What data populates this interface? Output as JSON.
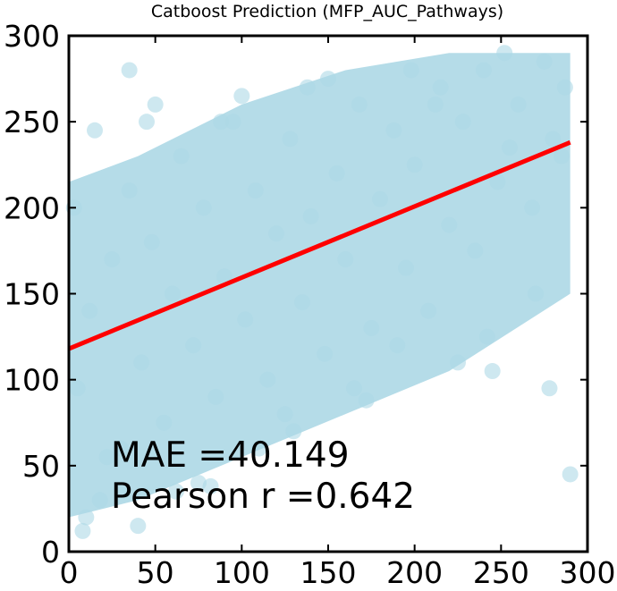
{
  "chart_data": {
    "type": "scatter",
    "title": "Catboost Prediction (MFP_AUC_Pathways)",
    "xlabel": "",
    "ylabel": "",
    "xlim": [
      0,
      300
    ],
    "ylim": [
      0,
      300
    ],
    "x_ticks": [
      "0",
      "50",
      "100",
      "150",
      "200",
      "250",
      "300"
    ],
    "y_ticks": [
      "0",
      "50",
      "100",
      "150",
      "200",
      "250",
      "300"
    ],
    "grid": false,
    "point_color": "#add8e6",
    "fit_line_color": "#ff0000",
    "fit_line": {
      "x": [
        0,
        290
      ],
      "y": [
        118,
        238
      ]
    },
    "annotations": {
      "mae": "MAE =40.149",
      "pearson": "Pearson r =0.642"
    },
    "series": [
      {
        "x": [
          5,
          12,
          18,
          25,
          30,
          35,
          42,
          48,
          55,
          60,
          65,
          72,
          78,
          85,
          90,
          95,
          102,
          108,
          115,
          120,
          128,
          135,
          140,
          148,
          155,
          160,
          168,
          175,
          180,
          188,
          195,
          200,
          208,
          215,
          220,
          228,
          235,
          240,
          248,
          255,
          260,
          268,
          275,
          280,
          287,
          10,
          22,
          40,
          62,
          88,
          110,
          138,
          165,
          190,
          212,
          242,
          270,
          285,
          3,
          15,
          50,
          75,
          100,
          130,
          150,
          172,
          198,
          225,
          252,
          278,
          290,
          8,
          35,
          45,
          82,
          125,
          245
        ],
        "y": [
          95,
          140,
          30,
          170,
          60,
          210,
          110,
          180,
          75,
          150,
          230,
          120,
          200,
          90,
          160,
          250,
          135,
          210,
          100,
          185,
          240,
          145,
          195,
          115,
          220,
          170,
          260,
          130,
          205,
          245,
          165,
          225,
          140,
          270,
          190,
          250,
          175,
          280,
          215,
          235,
          260,
          200,
          285,
          240,
          270,
          20,
          55,
          15,
          35,
          250,
          60,
          270,
          95,
          120,
          260,
          125,
          150,
          230,
          200,
          245,
          260,
          40,
          265,
          70,
          275,
          88,
          280,
          110,
          290,
          95,
          45,
          12,
          280,
          250,
          38,
          80,
          105
        ]
      }
    ]
  }
}
